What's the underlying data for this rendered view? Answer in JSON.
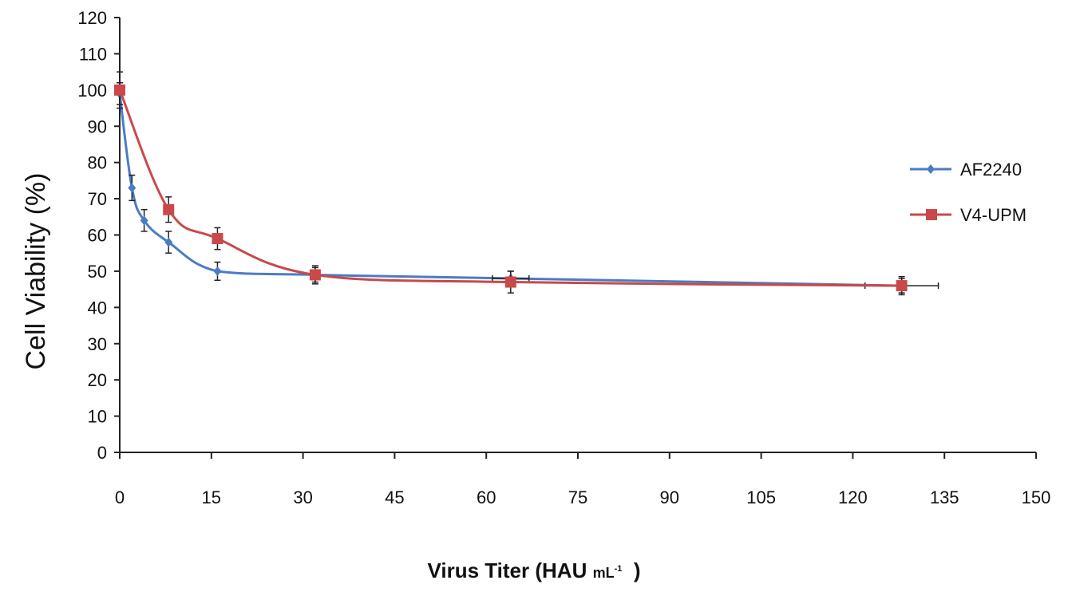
{
  "chart_data": {
    "type": "line",
    "xlabel": {
      "main": "Virus Titer (HAU",
      "unit": "mL",
      "sup": "-1",
      "close": ")"
    },
    "ylabel": "Cell Viability (%)",
    "xlim": [
      0,
      150
    ],
    "ylim": [
      0,
      120
    ],
    "xticks": [
      "0",
      "15",
      "30",
      "45",
      "60",
      "75",
      "90",
      "105",
      "120",
      "135",
      "150"
    ],
    "yticks": [
      "0",
      "10",
      "20",
      "30",
      "40",
      "50",
      "60",
      "70",
      "80",
      "90",
      "100",
      "110",
      "120"
    ],
    "grid": false,
    "legend_position": "right",
    "series": [
      {
        "name": "AF2240",
        "color": "#4a7cc4",
        "marker": "diamond",
        "x": [
          0,
          2,
          4,
          8,
          16,
          32,
          64,
          128
        ],
        "y": [
          99,
          73,
          64,
          58,
          50,
          49,
          48,
          46
        ],
        "yerr": [
          3,
          3.5,
          3,
          3,
          2.5,
          2,
          2,
          2
        ],
        "xerr": [
          0,
          0,
          0,
          0,
          0,
          0,
          3,
          6
        ]
      },
      {
        "name": "V4-UPM",
        "color": "#c9494a",
        "marker": "square",
        "x": [
          0,
          8,
          16,
          32,
          64,
          128
        ],
        "y": [
          100,
          67,
          59,
          49,
          47,
          46
        ],
        "yerr": [
          5,
          3.5,
          3,
          2.5,
          3,
          2.5
        ],
        "xerr": [
          0,
          0,
          0,
          0,
          0,
          0
        ]
      }
    ]
  }
}
